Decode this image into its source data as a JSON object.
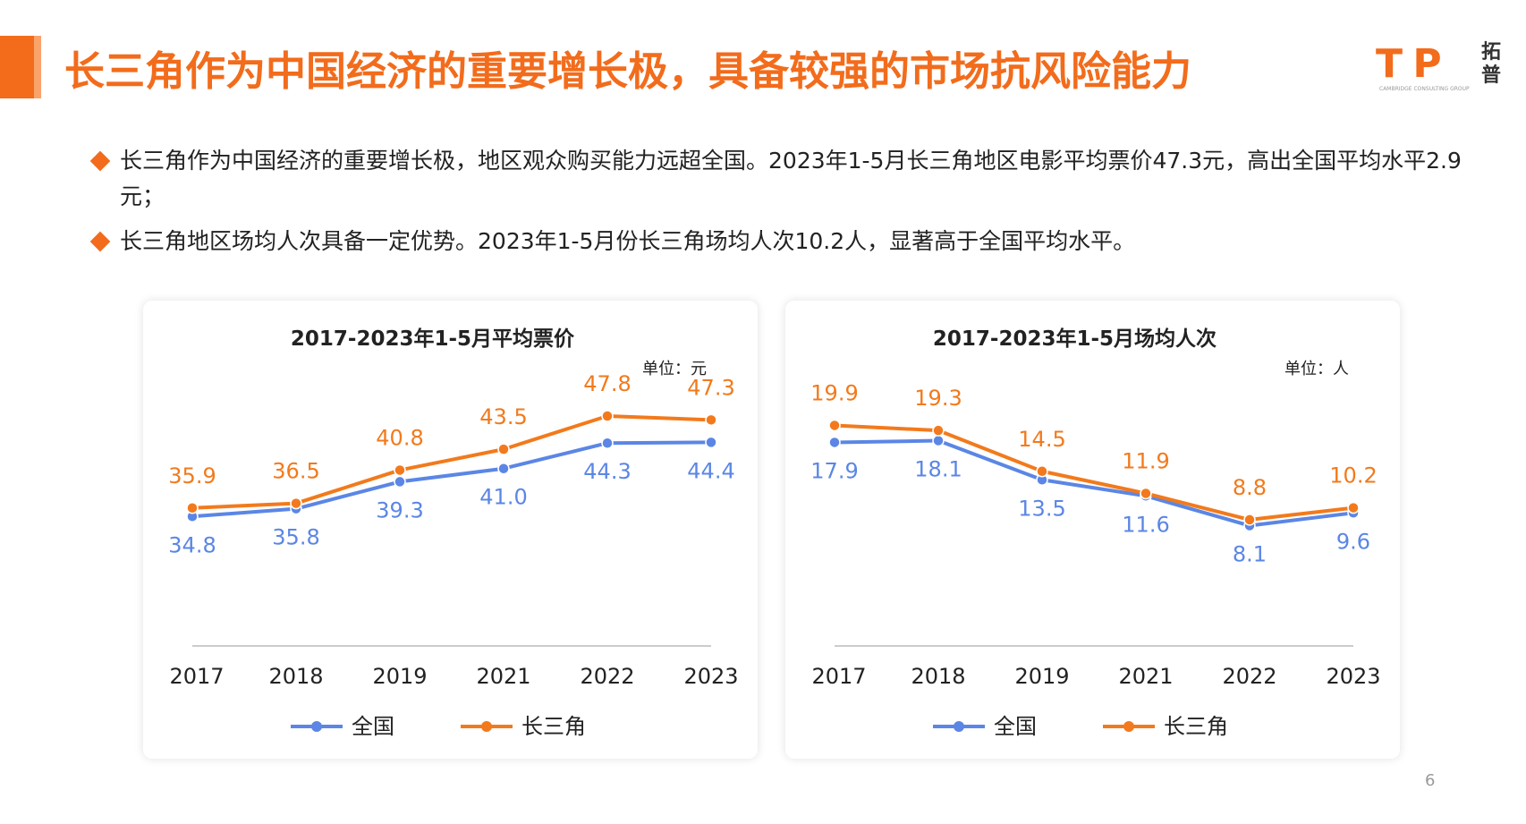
{
  "header": {
    "title": "长三角作为中国经济的重要增长极，具备较强的市场抗风险能力",
    "logo_text": "T P",
    "logo_cn": "拓普",
    "logo_sub": "CAMBRIDGE CONSULTING GROUP"
  },
  "bullets": [
    "长三角作为中国经济的重要增长极，地区观众购买能力远超全国。2023年1-5月长三角地区电影平均票价47.3元，高出全国平均水平2.9元；",
    "长三角地区场均人次具备一定优势。2023年1-5月份长三角场均人次10.2人，显著高于全国平均水平。"
  ],
  "colors": {
    "accent": "#f26c1c",
    "national": "#5b86e5",
    "yrd": "#f27a1c",
    "axis": "#cccccc",
    "text": "#222222"
  },
  "chart_data": [
    {
      "type": "line",
      "title": "2017-2023年1-5月平均票价",
      "unit": "单位：元",
      "categories": [
        "2017",
        "2018",
        "2019",
        "2021",
        "2022",
        "2023"
      ],
      "series": [
        {
          "name": "全国",
          "values": [
            34.8,
            35.8,
            39.3,
            41.0,
            44.3,
            44.4
          ],
          "color": "#5b86e5",
          "labels": "below"
        },
        {
          "name": "长三角",
          "values": [
            35.9,
            36.5,
            40.8,
            43.5,
            47.8,
            47.3
          ],
          "color": "#f27a1c",
          "labels": "above"
        }
      ],
      "ylim": [
        28,
        50
      ],
      "grid": false,
      "legend": "bottom"
    },
    {
      "type": "line",
      "title": "2017-2023年1-5月场均人次",
      "unit": "单位：人",
      "categories": [
        "2017",
        "2018",
        "2019",
        "2021",
        "2022",
        "2023"
      ],
      "series": [
        {
          "name": "全国",
          "values": [
            17.9,
            18.1,
            13.5,
            11.6,
            8.1,
            9.6
          ],
          "color": "#5b86e5",
          "labels": "below"
        },
        {
          "name": "长三角",
          "values": [
            19.9,
            19.3,
            14.5,
            11.9,
            8.8,
            10.2
          ],
          "color": "#f27a1c",
          "labels": "above"
        }
      ],
      "ylim": [
        3,
        23
      ],
      "grid": false,
      "legend": "bottom"
    }
  ],
  "page_number": "6"
}
